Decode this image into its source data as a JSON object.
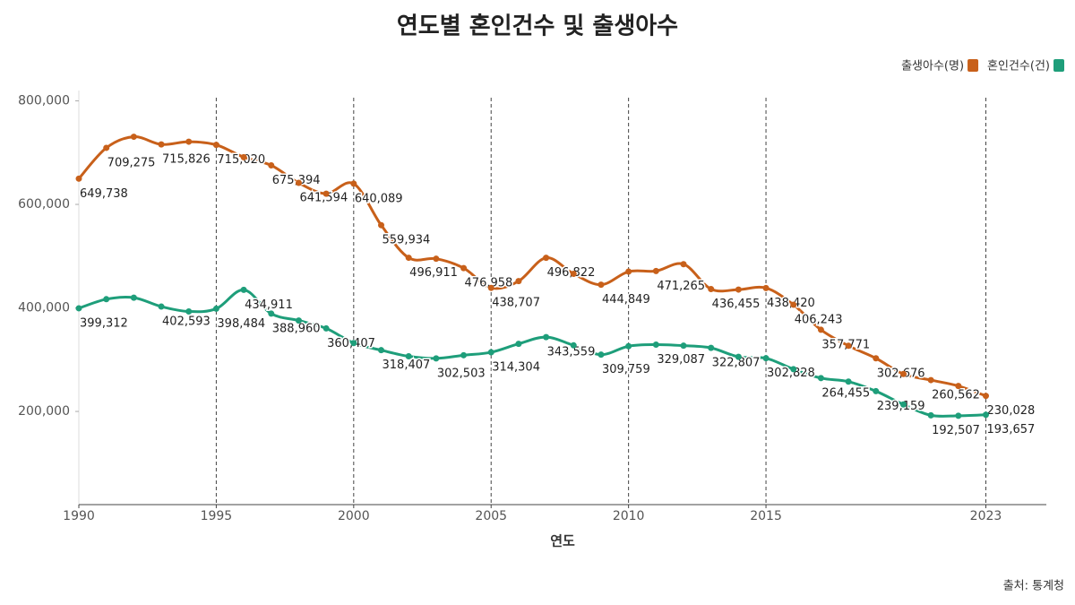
{
  "chart_data": {
    "type": "line",
    "title": "연도별 혼인건수 및 출생아수",
    "x_label": "연도",
    "source": "출처: 통계청",
    "x": [
      1990,
      1991,
      1992,
      1993,
      1994,
      1995,
      1996,
      1997,
      1998,
      1999,
      2000,
      2001,
      2002,
      2003,
      2004,
      2005,
      2006,
      2007,
      2008,
      2009,
      2010,
      2011,
      2012,
      2013,
      2014,
      2015,
      2016,
      2017,
      2018,
      2019,
      2020,
      2021,
      2022,
      2023
    ],
    "xlim": [
      1990,
      2025.2
    ],
    "xticks": [
      1990,
      1995,
      2000,
      2005,
      2010,
      2015,
      2023
    ],
    "ylim": [
      20000,
      820000
    ],
    "yticks": [
      {
        "value": 200000,
        "label": "200,000"
      },
      {
        "value": 400000,
        "label": "400,000"
      },
      {
        "value": 600000,
        "label": "600,000"
      },
      {
        "value": 800000,
        "label": "800,000"
      }
    ],
    "grid": "x",
    "legend": "top-right",
    "series": [
      {
        "name": "출생아수(명)",
        "color": "#c8601a",
        "values": [
          649738,
          709275,
          730678,
          715826,
          721185,
          715020,
          691226,
          675394,
          641594,
          620668,
          640089,
          559934,
          496911,
          495036,
          476958,
          438707,
          451759,
          496822,
          465892,
          444849,
          470171,
          471265,
          484550,
          436455,
          435435,
          438420,
          406243,
          357771,
          326822,
          302676,
          272337,
          260562,
          249186,
          230028
        ],
        "value_labels": [
          "649,738",
          "709,275",
          null,
          "715,826",
          null,
          "715,020",
          null,
          "675,394",
          "641,594",
          null,
          "640,089",
          "559,934",
          "496,911",
          null,
          "476,958",
          "438,707",
          null,
          "496,822",
          null,
          "444,849",
          null,
          "471,265",
          null,
          "436,455",
          null,
          "438,420",
          "406,243",
          "357,771",
          null,
          "302,676",
          null,
          "260,562",
          null,
          "230,028"
        ]
      },
      {
        "name": "혼인건수(건)",
        "color": "#1e9e7a",
        "values": [
          399312,
          416872,
          419774,
          402593,
          393121,
          398484,
          434911,
          388960,
          375616,
          360407,
          332090,
          318407,
          306573,
          302503,
          308598,
          314304,
          330634,
          343559,
          327715,
          309759,
          326104,
          329087,
          327073,
          322807,
          305507,
          302828,
          281635,
          264455,
          257622,
          239159,
          213502,
          192507,
          191690,
          193657
        ],
        "value_labels": [
          "399,312",
          null,
          null,
          "402,593",
          null,
          "398,484",
          "434,911",
          "388,960",
          null,
          "360,407",
          null,
          "318,407",
          null,
          "302,503",
          null,
          "314,304",
          null,
          "343,559",
          null,
          "309,759",
          null,
          "329,087",
          null,
          "322,807",
          null,
          "302,828",
          null,
          "264,455",
          null,
          "239,159",
          null,
          "192,507",
          null,
          "193,657"
        ]
      }
    ]
  }
}
